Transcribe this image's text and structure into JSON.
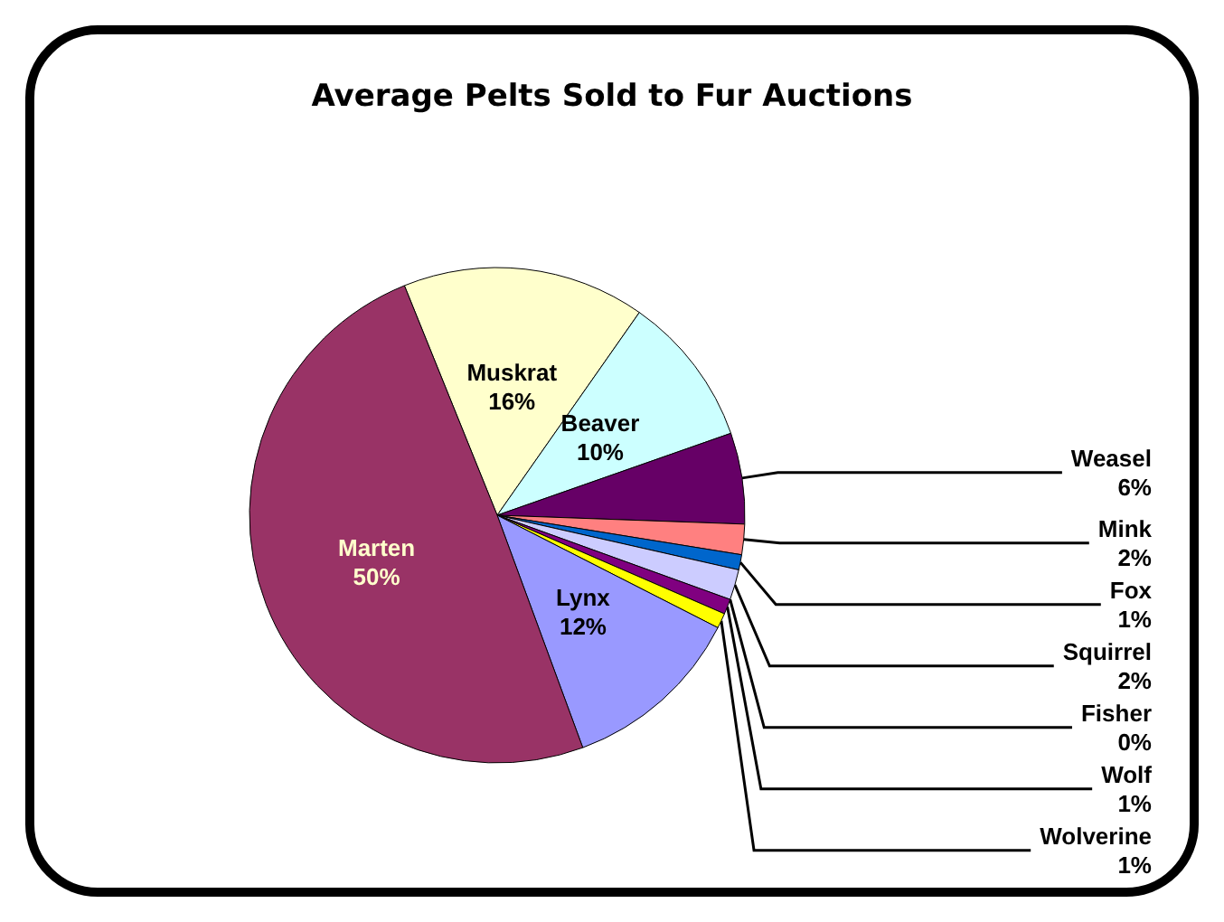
{
  "chart_data": {
    "type": "pie",
    "title": "Average Pelts Sold to Fur Auctions",
    "categories": [
      "Muskrat",
      "Beaver",
      "Weasel",
      "Mink",
      "Fox",
      "Squirrel",
      "Fisher",
      "Wolf",
      "Wolverine",
      "Lynx",
      "Marten"
    ],
    "values": [
      16,
      10,
      6,
      2,
      1,
      2,
      0,
      1,
      1,
      12,
      50
    ],
    "value_labels": [
      "16%",
      "10%",
      "6%",
      "2%",
      "1%",
      "2%",
      "0%",
      "1%",
      "1%",
      "12%",
      "50%"
    ],
    "colors": [
      "#ffffcc",
      "#ccffff",
      "#660066",
      "#ff8080",
      "#0066cc",
      "#ccccff",
      "#000080",
      "#800080",
      "#ffff00",
      "#9999ff",
      "#993366"
    ],
    "legend": false
  }
}
